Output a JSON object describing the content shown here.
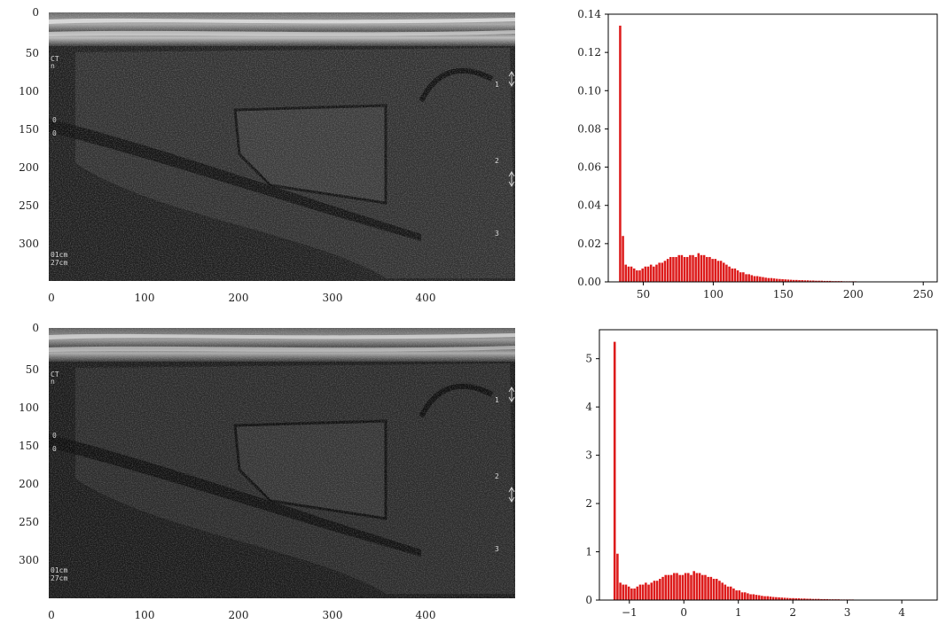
{
  "us_images": [
    {
      "y_ticks": [
        "0",
        "50",
        "100",
        "150",
        "200",
        "250",
        "300"
      ],
      "x_ticks": [
        "0",
        "100",
        "200",
        "300",
        "400"
      ],
      "overlay": {
        "ct": "CT",
        "ct2": "n",
        "zero1": "0",
        "zero2": "0",
        "scale1": "01cm",
        "scale2": "27cm",
        "marker1": "1",
        "marker2": "2",
        "marker3": "3"
      }
    },
    {
      "y_ticks": [
        "0",
        "50",
        "100",
        "150",
        "200",
        "250",
        "300"
      ],
      "x_ticks": [
        "0",
        "100",
        "200",
        "300",
        "400"
      ],
      "overlay": {
        "ct": "CT",
        "ct2": "n",
        "zero1": "0",
        "zero2": "0",
        "scale1": "01cm",
        "scale2": "27cm",
        "marker1": "1",
        "marker2": "2",
        "marker3": "3"
      }
    }
  ],
  "chart_data": [
    {
      "type": "bar",
      "color": "#dd1b1b",
      "xlim": [
        25,
        260
      ],
      "ylim": [
        0,
        0.14
      ],
      "x_ticks": [
        50,
        100,
        150,
        200,
        250
      ],
      "y_ticks": [
        0.0,
        0.02,
        0.04,
        0.06,
        0.08,
        0.1,
        0.12,
        0.14
      ],
      "x_tick_labels": [
        "50",
        "100",
        "150",
        "200",
        "250"
      ],
      "y_tick_labels": [
        "0.00",
        "0.02",
        "0.04",
        "0.06",
        "0.08",
        "0.10",
        "0.12",
        "0.14"
      ],
      "bin_width": 2,
      "x": [
        33.5,
        35.5,
        37.5,
        39.5,
        41.5,
        43.5,
        45.5,
        47.5,
        49.5,
        51.5,
        53.5,
        55.5,
        57.5,
        59.5,
        61.5,
        63.5,
        65.5,
        67.5,
        69.5,
        71.5,
        73.5,
        75.5,
        77.5,
        79.5,
        81.5,
        83.5,
        85.5,
        87.5,
        89.5,
        91.5,
        93.5,
        95.5,
        97.5,
        99.5,
        101.5,
        103.5,
        105.5,
        107.5,
        109.5,
        111.5,
        113.5,
        115.5,
        117.5,
        119.5,
        121.5,
        123.5,
        125.5,
        127.5,
        129.5,
        131.5,
        133.5,
        135.5,
        137.5,
        139.5,
        141.5,
        143.5,
        145.5,
        147.5,
        149.5,
        151.5,
        153.5,
        155.5,
        157.5,
        159.5,
        161.5,
        163.5,
        165.5,
        167.5,
        169.5,
        171.5,
        173.5,
        175.5,
        177.5,
        179.5,
        181.5,
        183.5,
        185.5,
        187.5,
        189.5,
        191.5,
        193.5,
        195.5,
        197.5,
        199.5,
        201.5,
        203.5,
        205.5,
        207.5,
        209.5,
        211.5,
        213.5,
        215.5,
        217.5,
        219.5,
        221.5,
        223.5,
        225.5,
        227.5,
        229.5,
        231.5
      ],
      "values": [
        0.134,
        0.024,
        0.009,
        0.008,
        0.008,
        0.007,
        0.006,
        0.006,
        0.007,
        0.008,
        0.008,
        0.009,
        0.008,
        0.009,
        0.01,
        0.01,
        0.011,
        0.012,
        0.013,
        0.013,
        0.013,
        0.014,
        0.014,
        0.013,
        0.013,
        0.014,
        0.014,
        0.013,
        0.015,
        0.014,
        0.014,
        0.013,
        0.013,
        0.012,
        0.012,
        0.011,
        0.011,
        0.01,
        0.009,
        0.008,
        0.007,
        0.007,
        0.006,
        0.005,
        0.005,
        0.004,
        0.004,
        0.0035,
        0.003,
        0.003,
        0.0027,
        0.0025,
        0.0022,
        0.002,
        0.002,
        0.0018,
        0.0016,
        0.0015,
        0.0014,
        0.0013,
        0.0012,
        0.0011,
        0.001,
        0.001,
        0.0009,
        0.0009,
        0.0008,
        0.0008,
        0.0007,
        0.0007,
        0.0006,
        0.0006,
        0.0006,
        0.0005,
        0.0005,
        0.0005,
        0.0004,
        0.0004,
        0.0004,
        0.0004,
        0.0003,
        0.0003,
        0.0003,
        0.0003,
        0.0003,
        0.0002,
        0.0002,
        0.0002,
        0.0002,
        0.0002,
        0.0002,
        0.0002,
        0.0001,
        0.0001,
        0.0001,
        0.0001,
        0.0001,
        0.0001,
        0.0001,
        0.0001
      ]
    },
    {
      "type": "bar",
      "color": "#dd1b1b",
      "xlim": [
        -1.55,
        4.65
      ],
      "ylim": [
        0,
        5.6
      ],
      "x_ticks": [
        -1,
        0,
        1,
        2,
        3,
        4
      ],
      "y_ticks": [
        0,
        1,
        2,
        3,
        4,
        5
      ],
      "x_tick_labels": [
        "−1",
        "0",
        "1",
        "2",
        "3",
        "4"
      ],
      "y_tick_labels": [
        "0",
        "1",
        "2",
        "3",
        "4",
        "5"
      ],
      "bin_width": 0.052,
      "x": [
        -1.27,
        -1.218,
        -1.166,
        -1.114,
        -1.062,
        -1.01,
        -0.958,
        -0.906,
        -0.854,
        -0.802,
        -0.75,
        -0.698,
        -0.646,
        -0.594,
        -0.542,
        -0.49,
        -0.438,
        -0.386,
        -0.334,
        -0.282,
        -0.23,
        -0.178,
        -0.126,
        -0.074,
        -0.022,
        0.03,
        0.082,
        0.134,
        0.186,
        0.238,
        0.29,
        0.342,
        0.394,
        0.446,
        0.498,
        0.55,
        0.602,
        0.654,
        0.706,
        0.758,
        0.81,
        0.862,
        0.914,
        0.966,
        1.018,
        1.07,
        1.122,
        1.174,
        1.226,
        1.278,
        1.33,
        1.382,
        1.434,
        1.486,
        1.538,
        1.59,
        1.642,
        1.694,
        1.746,
        1.798,
        1.85,
        1.902,
        1.954,
        2.006,
        2.058,
        2.11,
        2.162,
        2.214,
        2.266,
        2.318,
        2.37,
        2.422,
        2.474,
        2.526,
        2.578,
        2.63,
        2.682,
        2.734,
        2.786,
        2.838,
        2.89,
        2.942,
        2.994,
        3.046,
        3.098,
        3.15,
        3.202,
        3.254,
        3.306,
        3.358,
        3.41,
        3.462,
        3.514,
        3.566,
        3.618,
        3.67,
        3.722,
        3.774,
        3.826,
        3.878
      ],
      "values": [
        5.35,
        0.96,
        0.36,
        0.32,
        0.32,
        0.28,
        0.24,
        0.24,
        0.28,
        0.32,
        0.32,
        0.36,
        0.32,
        0.36,
        0.4,
        0.4,
        0.44,
        0.48,
        0.52,
        0.52,
        0.52,
        0.56,
        0.56,
        0.52,
        0.52,
        0.56,
        0.56,
        0.52,
        0.6,
        0.56,
        0.56,
        0.52,
        0.52,
        0.48,
        0.48,
        0.44,
        0.44,
        0.4,
        0.36,
        0.32,
        0.28,
        0.28,
        0.24,
        0.2,
        0.2,
        0.16,
        0.16,
        0.14,
        0.12,
        0.12,
        0.108,
        0.1,
        0.088,
        0.08,
        0.08,
        0.072,
        0.064,
        0.06,
        0.056,
        0.052,
        0.048,
        0.044,
        0.04,
        0.04,
        0.036,
        0.036,
        0.032,
        0.032,
        0.028,
        0.028,
        0.024,
        0.024,
        0.024,
        0.02,
        0.02,
        0.02,
        0.016,
        0.016,
        0.016,
        0.016,
        0.012,
        0.012,
        0.012,
        0.012,
        0.012,
        0.008,
        0.008,
        0.008,
        0.008,
        0.008,
        0.008,
        0.008,
        0.004,
        0.004,
        0.004,
        0.004,
        0.004,
        0.004,
        0.004,
        0.004
      ]
    }
  ]
}
